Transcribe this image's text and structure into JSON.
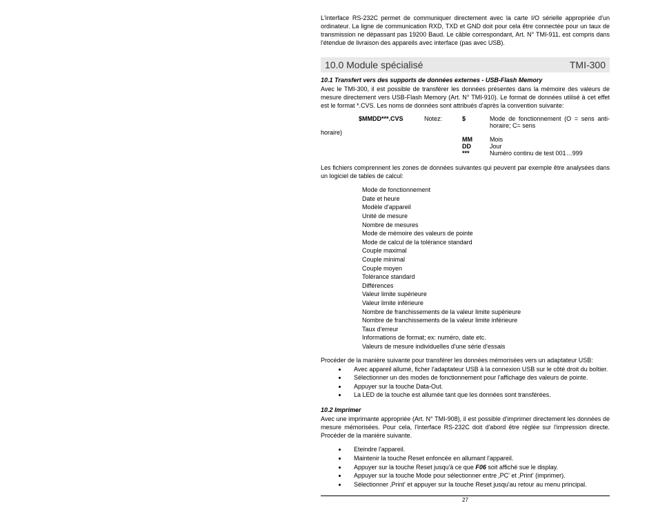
{
  "intro": "L'interface RS-232C permet de communiquer directement avec la carte I/O sérielle appropriée d'un ordinateur. La ligne de communication RXD, TXD et GND doit pour cela être connectée pour un taux de transmission ne dépassant pas 19200 Baud. Le câble correspondant, Art. N° TMI-911, est compris dans l'étendue de livraison des appareils avec interface (pas avec USB).",
  "section": {
    "title": "10.0 Module spécialisé",
    "code": "TMI-300"
  },
  "sub1": {
    "heading": "10.1 Transfert vers des supports de données externes - USB-Flash Memory",
    "para": "Avec le TMI-300, il est possible de transférer les données présentes dans la mémoire des valeurs de mesure directement vers USB-Flash Memory (Art. N° TMI-910). Le format de données utilisé à cet effet est le format *.CVS. Les noms de données sont attribués d'après la convention suivante:",
    "filename": "$MMDD***.CVS",
    "notez": "Notez:",
    "rows": [
      {
        "sym": "$",
        "desc": "Mode de fonctionnement (O = sens anti-horaire; C= sens"
      },
      {
        "sym": "MM",
        "desc": "Mois"
      },
      {
        "sym": "DD",
        "desc": "Jour"
      },
      {
        "sym": "***",
        "desc": "Numéro continu de test 001…999"
      }
    ],
    "horaire": "horaire)",
    "para2": "Les fichiers comprennent les zones de données suivantes qui peuvent par exemple être analysées dans un logiciel de tables de calcul:",
    "fields": [
      "Mode de fonctionnement",
      "Date et heure",
      "Modèle d'appareil",
      "Unité de mesure",
      "Nombre de mesures",
      "Mode de  mémoire des valeurs de pointe",
      "Mode de calcul de la tolérance standard",
      "Couple maximal",
      "Couple minimal",
      "Couple moyen",
      "Tolérance standard",
      "Différences",
      "Valeur limite supérieure",
      "Valeur limite inférieure",
      "Nombre de franchissements de la valeur limite supérieure",
      "Nombre de franchissements de la valeur limite inférieure",
      "Taux d'erreur",
      "Informations de format; ex: numéro, date etc.",
      "Valeurs de mesure individuelles d'une série d'essais"
    ],
    "proc_intro": "Procéder de la manière suivante pour transférer les données mémorisées vers un adaptateur USB:",
    "proc": [
      "Avec appareil allumé, ficher l'adaptateur USB à la connexion USB sur le côté droit du boîtier.",
      "Sélectionner un des modes de fonctionnement pour l'affichage des valeurs de pointe.",
      "Appuyer sur la touche Data-Out.",
      "La LED de la touche est allumée tant que les données sont transférées."
    ]
  },
  "sub2": {
    "heading": "10.2 Imprimer",
    "para": "Avec une imprimante appropriée (Art. N° TMI-908), il est possible d'imprimer directement les données de mesure mémorisées. Pour cela, l'interface RS-232C doit d'abord être réglée sur l'impression directe. Procéder de la manière suivante.",
    "steps_a": "Eteindre l'appareil.",
    "steps_b": "Maintenir la touche Reset enfoncée en allumant l'appareil.",
    "steps_c_pre": "Appuyer sur la touche Reset jusqu'à ce que ",
    "steps_c_bold": "F06",
    "steps_c_post": " soit affiché sue le display.",
    "steps_d": "Appuyer sur la touche Mode pour sélectionner entre  ‚PC' et ‚Print' (imprimer).",
    "steps_e": "Sélectionner  ‚Print' et appuyer sur la touche Reset jusqu'au retour au menu principal."
  },
  "page_number": "27"
}
